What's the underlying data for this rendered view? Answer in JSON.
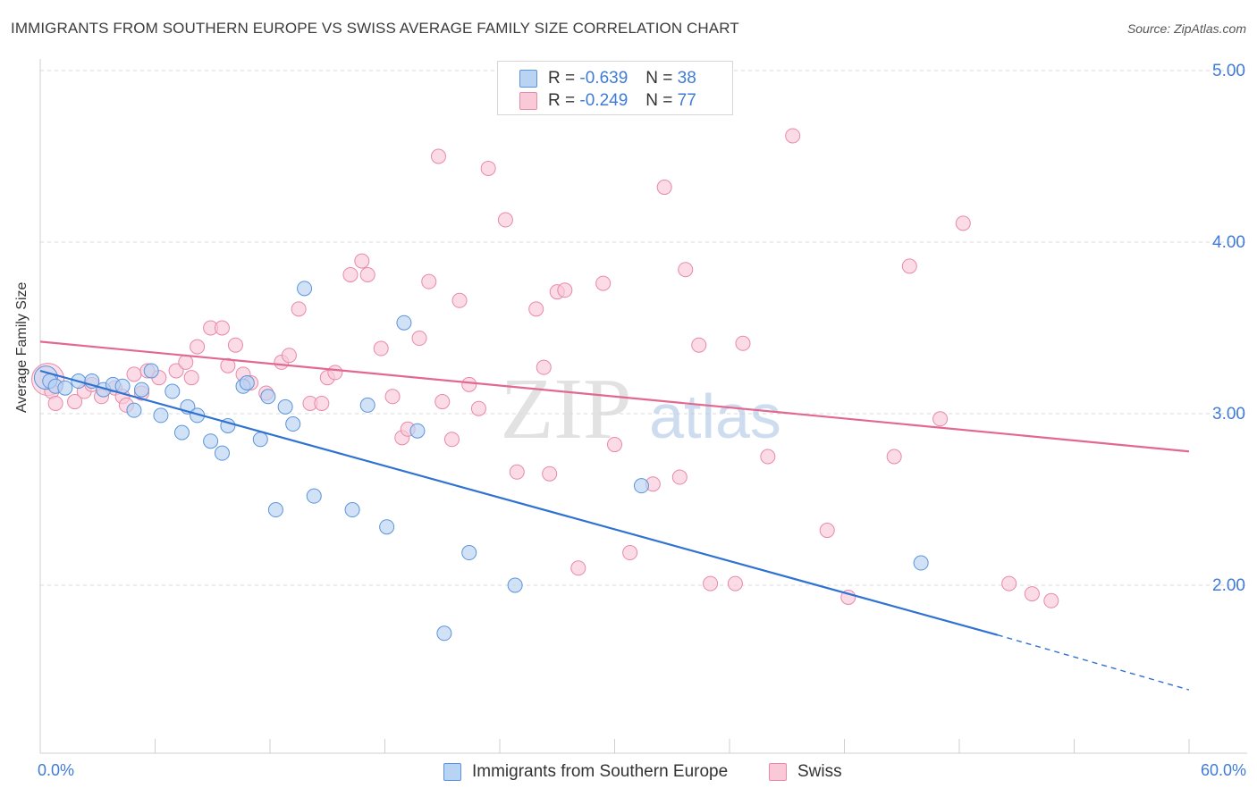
{
  "title": "IMMIGRANTS FROM SOUTHERN EUROPE VS SWISS AVERAGE FAMILY SIZE CORRELATION CHART",
  "source": "Source: ZipAtlas.com",
  "watermark": {
    "zip": "ZIP",
    "atlas": "atlas"
  },
  "colors": {
    "blue_fill": "#b9d3f3",
    "blue_stroke": "#5b94dc",
    "blue_line": "#2f72d2",
    "pink_fill": "#f9c9d8",
    "pink_stroke": "#e889a8",
    "pink_line": "#e2688f",
    "accent_text": "#3f7bd8",
    "grid": "#d9d9d9"
  },
  "legend": {
    "rows": [
      {
        "r_label": "R =",
        "r_value": "-0.639",
        "n_label": "N =",
        "n_value": "38"
      },
      {
        "r_label": "R =",
        "r_value": "-0.249",
        "n_label": "N =",
        "n_value": "77"
      }
    ]
  },
  "chart_data": {
    "type": "scatter",
    "title": "IMMIGRANTS FROM SOUTHERN EUROPE VS SWISS AVERAGE FAMILY SIZE CORRELATION CHART",
    "xlabel": "",
    "ylabel": "Average Family Size",
    "xlim": [
      0,
      60
    ],
    "ylim": [
      1.0,
      5.1
    ],
    "x_tick_labels": [
      "0.0%",
      "60.0%"
    ],
    "y_ticks": [
      2.0,
      3.0,
      4.0,
      5.0
    ],
    "y_tick_labels": [
      "2.00",
      "3.00",
      "4.00",
      "5.00"
    ],
    "grid": true,
    "legend_position": "top-center",
    "series": [
      {
        "name": "Immigrants from Southern Europe",
        "R": -0.639,
        "N": 38,
        "points": [
          [
            0.5,
            3.19
          ],
          [
            0.8,
            3.16
          ],
          [
            1.3,
            3.15
          ],
          [
            2.0,
            3.19
          ],
          [
            2.7,
            3.19
          ],
          [
            3.3,
            3.14
          ],
          [
            3.8,
            3.17
          ],
          [
            4.3,
            3.16
          ],
          [
            4.9,
            3.02
          ],
          [
            5.3,
            3.14
          ],
          [
            5.8,
            3.25
          ],
          [
            6.3,
            2.99
          ],
          [
            6.9,
            3.13
          ],
          [
            7.4,
            2.89
          ],
          [
            7.7,
            3.04
          ],
          [
            8.2,
            2.99
          ],
          [
            8.9,
            2.84
          ],
          [
            9.5,
            2.77
          ],
          [
            9.8,
            2.93
          ],
          [
            10.6,
            3.16
          ],
          [
            10.8,
            3.18
          ],
          [
            11.5,
            2.85
          ],
          [
            11.9,
            3.1
          ],
          [
            12.3,
            2.44
          ],
          [
            12.8,
            3.04
          ],
          [
            13.2,
            2.94
          ],
          [
            13.8,
            3.73
          ],
          [
            14.3,
            2.52
          ],
          [
            16.3,
            2.44
          ],
          [
            17.1,
            3.05
          ],
          [
            18.1,
            2.34
          ],
          [
            19.0,
            3.53
          ],
          [
            19.7,
            2.9
          ],
          [
            21.1,
            1.72
          ],
          [
            22.4,
            2.19
          ],
          [
            24.8,
            2.0
          ],
          [
            31.4,
            2.58
          ],
          [
            46.0,
            2.13
          ]
        ],
        "trend": {
          "x_start": 0,
          "y_start": 3.25,
          "x_solid_end": 50.0,
          "y_solid_end": 1.71,
          "x_dash_end": 60,
          "y_dash_end": 1.39
        }
      },
      {
        "name": "Swiss",
        "R": -0.249,
        "N": 77,
        "points": [
          [
            0.6,
            3.13
          ],
          [
            0.8,
            3.06
          ],
          [
            1.8,
            3.07
          ],
          [
            2.3,
            3.13
          ],
          [
            2.7,
            3.17
          ],
          [
            3.2,
            3.1
          ],
          [
            3.9,
            3.15
          ],
          [
            4.3,
            3.1
          ],
          [
            4.5,
            3.05
          ],
          [
            4.9,
            3.23
          ],
          [
            5.3,
            3.12
          ],
          [
            5.6,
            3.25
          ],
          [
            6.2,
            3.21
          ],
          [
            7.1,
            3.25
          ],
          [
            7.6,
            3.3
          ],
          [
            7.9,
            3.21
          ],
          [
            8.2,
            3.39
          ],
          [
            8.9,
            3.5
          ],
          [
            9.5,
            3.5
          ],
          [
            9.8,
            3.28
          ],
          [
            10.2,
            3.4
          ],
          [
            10.6,
            3.23
          ],
          [
            11.0,
            3.18
          ],
          [
            11.8,
            3.12
          ],
          [
            12.6,
            3.3
          ],
          [
            13.0,
            3.34
          ],
          [
            13.5,
            3.61
          ],
          [
            14.1,
            3.06
          ],
          [
            14.7,
            3.06
          ],
          [
            15.0,
            3.21
          ],
          [
            15.4,
            3.24
          ],
          [
            16.2,
            3.81
          ],
          [
            16.8,
            3.89
          ],
          [
            17.1,
            3.81
          ],
          [
            17.8,
            3.38
          ],
          [
            18.4,
            3.1
          ],
          [
            18.9,
            2.86
          ],
          [
            19.2,
            2.91
          ],
          [
            19.8,
            3.44
          ],
          [
            20.3,
            3.77
          ],
          [
            20.8,
            4.5
          ],
          [
            21.0,
            3.07
          ],
          [
            21.5,
            2.85
          ],
          [
            21.9,
            3.66
          ],
          [
            22.4,
            3.17
          ],
          [
            22.9,
            3.03
          ],
          [
            23.4,
            4.43
          ],
          [
            24.3,
            4.13
          ],
          [
            24.9,
            2.66
          ],
          [
            25.9,
            3.61
          ],
          [
            26.3,
            3.27
          ],
          [
            26.6,
            2.65
          ],
          [
            27.0,
            3.71
          ],
          [
            27.4,
            3.72
          ],
          [
            28.1,
            2.1
          ],
          [
            29.4,
            3.76
          ],
          [
            30.0,
            2.82
          ],
          [
            30.8,
            2.19
          ],
          [
            32.0,
            2.59
          ],
          [
            32.6,
            4.32
          ],
          [
            33.4,
            2.63
          ],
          [
            33.7,
            3.84
          ],
          [
            34.4,
            3.4
          ],
          [
            35.0,
            2.01
          ],
          [
            36.3,
            2.01
          ],
          [
            36.7,
            3.41
          ],
          [
            38.0,
            2.75
          ],
          [
            39.3,
            4.62
          ],
          [
            41.1,
            2.32
          ],
          [
            42.2,
            1.93
          ],
          [
            44.6,
            2.75
          ],
          [
            45.4,
            3.86
          ],
          [
            47.0,
            2.97
          ],
          [
            48.2,
            4.11
          ],
          [
            50.6,
            2.01
          ],
          [
            51.8,
            1.95
          ],
          [
            52.8,
            1.91
          ]
        ],
        "trend": {
          "x_start": 0,
          "y_start": 3.42,
          "x_end": 60,
          "y_end": 2.78
        }
      }
    ]
  }
}
